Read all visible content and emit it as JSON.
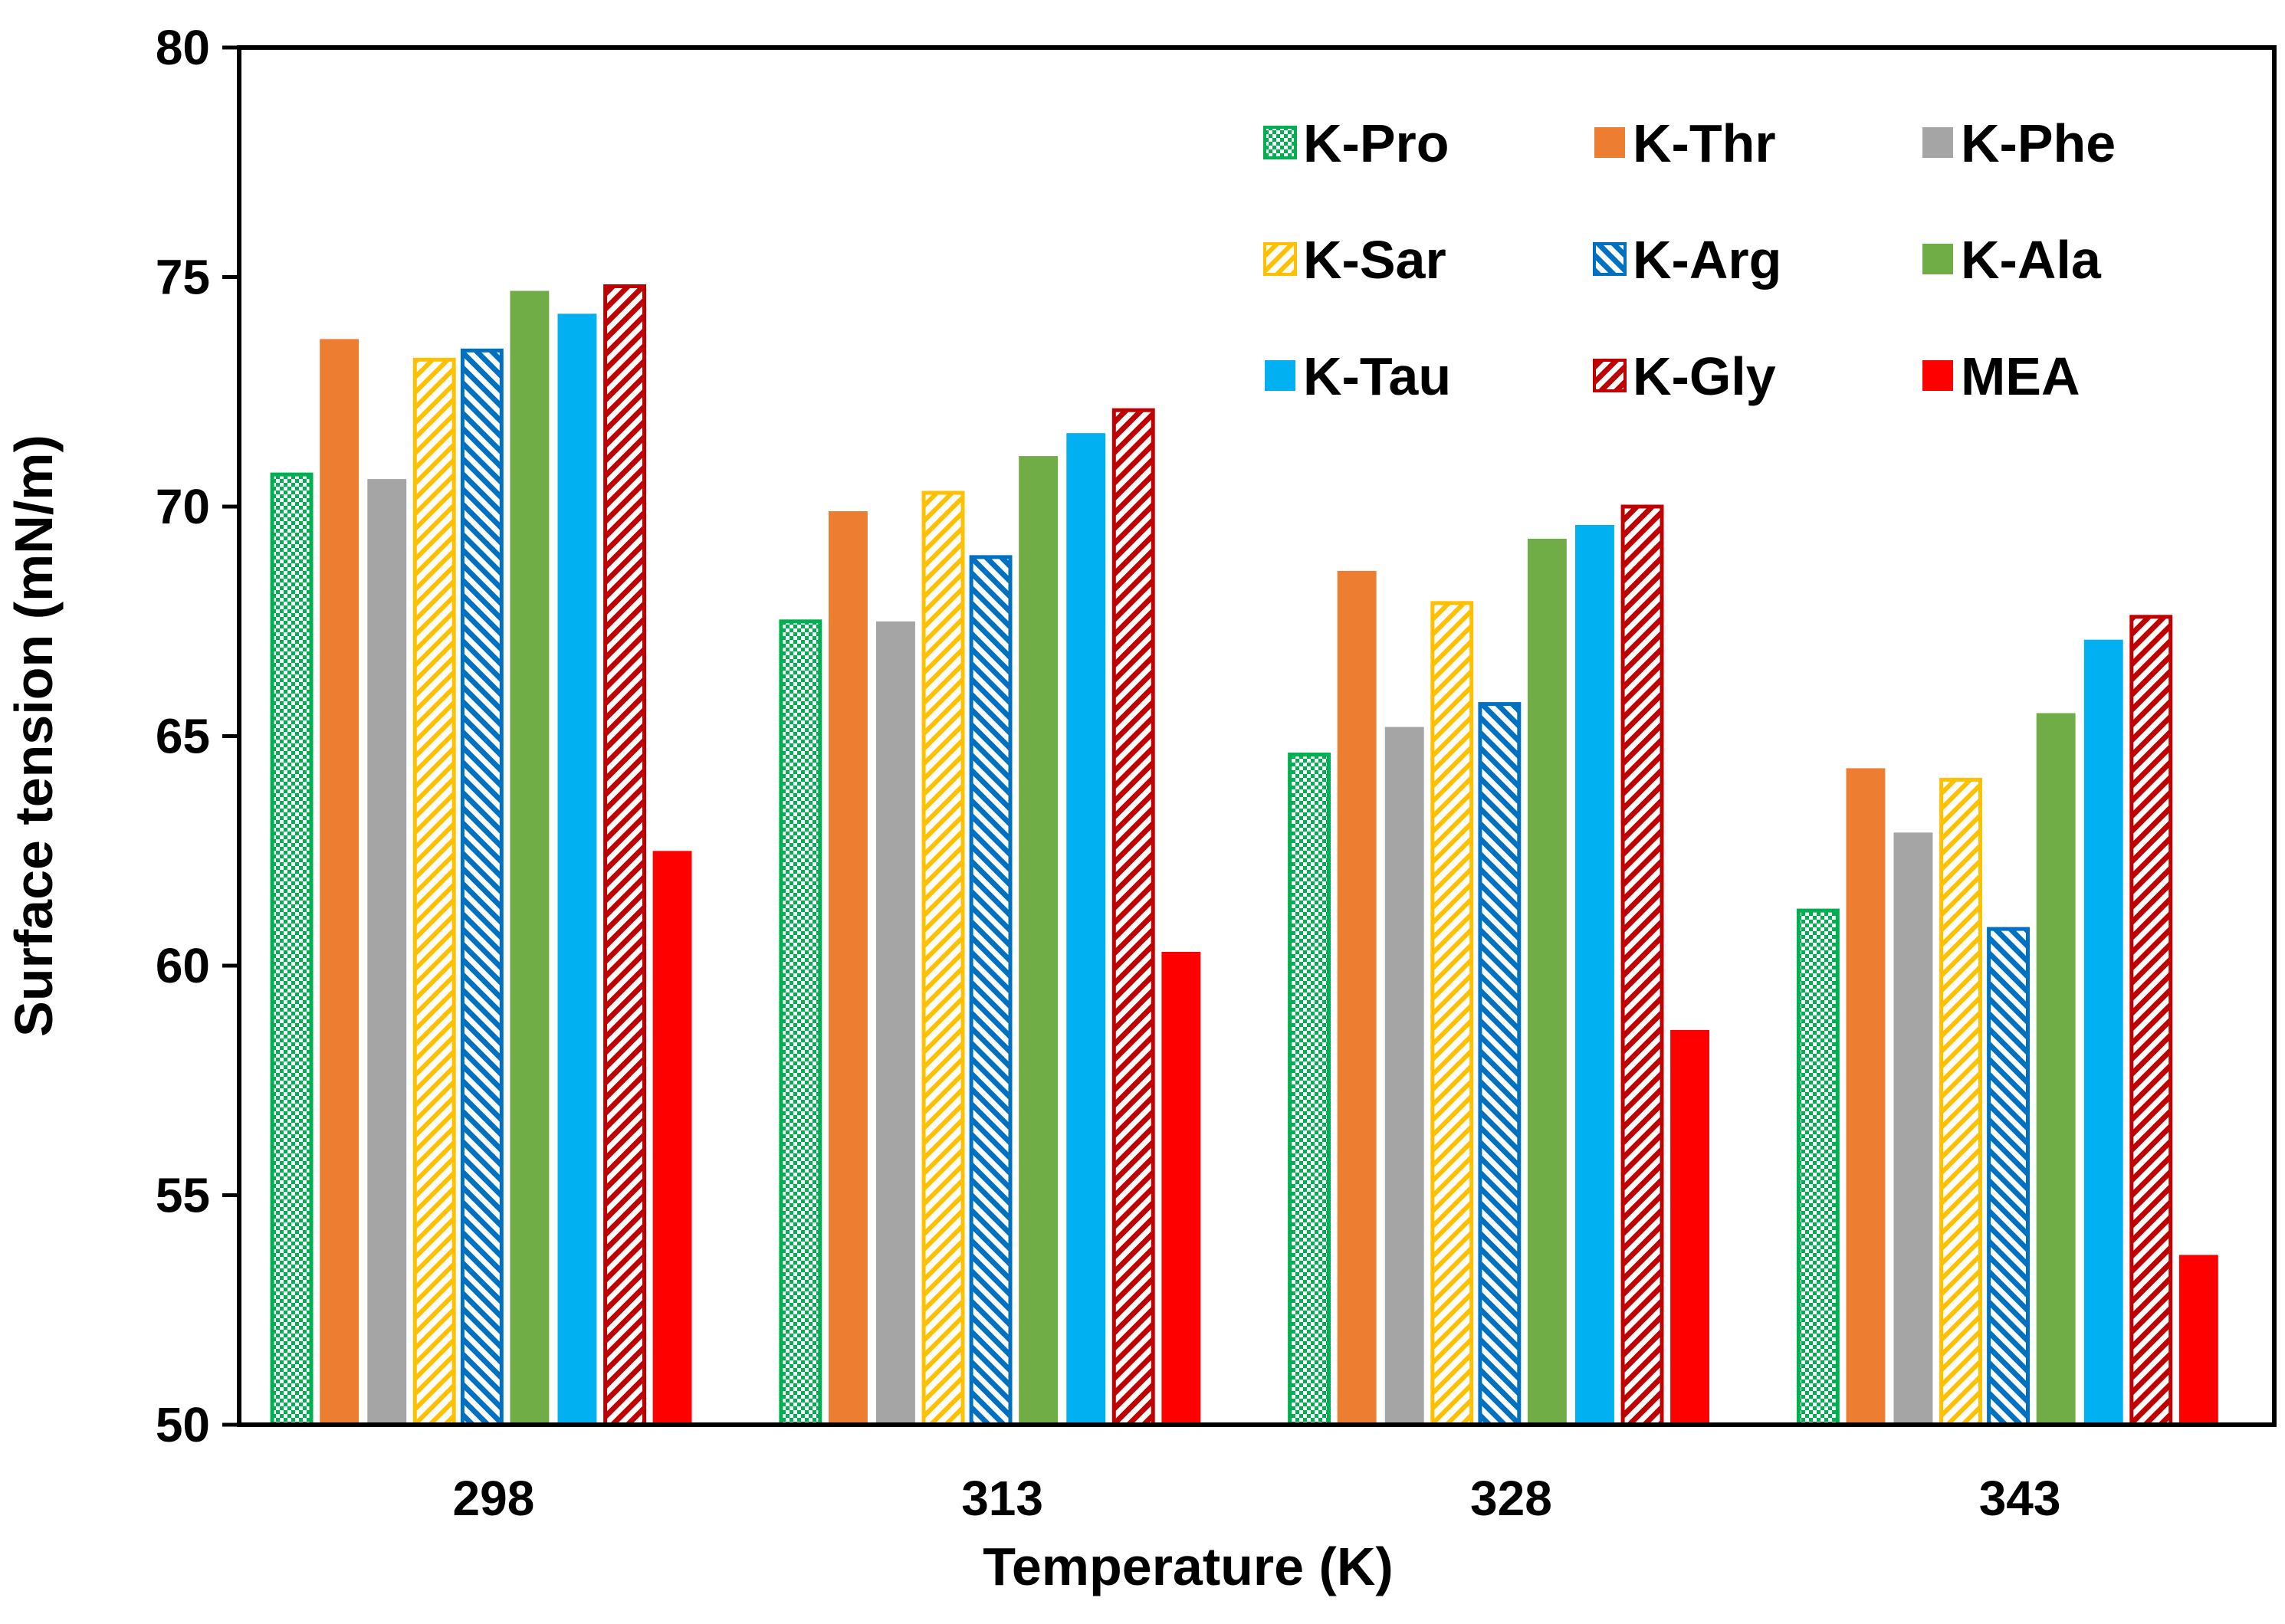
{
  "chart_data": {
    "type": "bar",
    "title": "",
    "xlabel": "Temperature (K)",
    "ylabel": "Surface tension (mN/m)",
    "ylim": [
      50,
      80
    ],
    "yticks": [
      "50",
      "55",
      "60",
      "65",
      "70",
      "75",
      "80"
    ],
    "grid": false,
    "legend_position": "top-right",
    "categories": [
      "298",
      "313",
      "328",
      "343"
    ],
    "series": [
      {
        "name": "K-Pro",
        "color": "#00b050",
        "pattern": "checker-hollow",
        "values": [
          70.7,
          67.5,
          64.6,
          61.2
        ]
      },
      {
        "name": "K-Thr",
        "color": "#ed7d31",
        "pattern": "solid",
        "values": [
          73.65,
          69.9,
          68.6,
          64.3
        ]
      },
      {
        "name": "K-Phe",
        "color": "#a5a5a5",
        "pattern": "solid",
        "values": [
          70.6,
          67.5,
          65.2,
          62.9
        ]
      },
      {
        "name": "K-Sar",
        "color": "#ffc000",
        "pattern": "diagonal-up-hollow",
        "values": [
          73.2,
          70.3,
          67.9,
          64.05
        ]
      },
      {
        "name": "K-Arg",
        "color": "#0070c0",
        "pattern": "diagonal-down",
        "values": [
          73.4,
          68.9,
          65.7,
          60.8
        ]
      },
      {
        "name": "K-Ala",
        "color": "#70ad47",
        "pattern": "solid",
        "values": [
          74.7,
          71.1,
          69.3,
          65.5
        ]
      },
      {
        "name": "K-Tau",
        "color": "#00b0f0",
        "pattern": "solid",
        "values": [
          74.2,
          71.6,
          69.6,
          67.1
        ]
      },
      {
        "name": "K-Gly",
        "color": "#c00000",
        "pattern": "diagonal-up",
        "values": [
          74.8,
          72.1,
          70.0,
          67.6
        ]
      },
      {
        "name": "MEA",
        "color": "#ff0000",
        "pattern": "solid",
        "values": [
          62.5,
          60.3,
          58.6,
          53.7
        ]
      }
    ]
  }
}
